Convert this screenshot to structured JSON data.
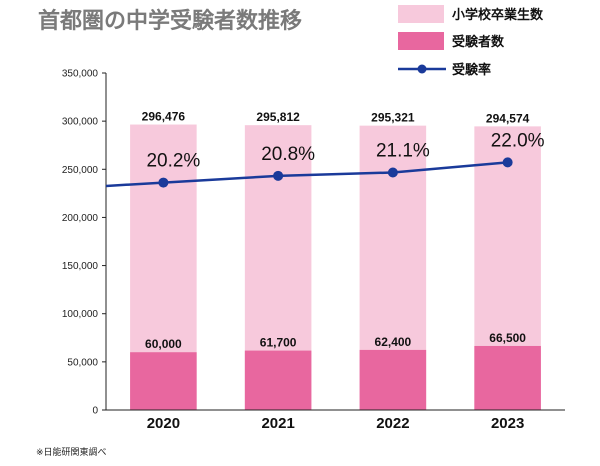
{
  "chart_data": {
    "type": "bar",
    "title": "首都圏の中学受験者数推移",
    "categories": [
      "2020",
      "2021",
      "2022",
      "2023"
    ],
    "ylim": [
      0,
      350000
    ],
    "yticks": [
      "0",
      "50,000",
      "100,000",
      "150,000",
      "200,000",
      "250,000",
      "300,000",
      "350,000"
    ],
    "series": [
      {
        "name": "小学校卒業生数",
        "kind": "bar",
        "color": "#f7c9dc",
        "values": [
          296476,
          295812,
          295321,
          294574
        ],
        "labels": [
          "296,476",
          "295,812",
          "295,321",
          "294,574"
        ]
      },
      {
        "name": "受験者数",
        "kind": "bar",
        "color": "#e8679f",
        "values": [
          60000,
          61700,
          62400,
          66500
        ],
        "labels": [
          "60,000",
          "61,700",
          "62,400",
          "66,500"
        ]
      },
      {
        "name": "受験率",
        "kind": "line",
        "color": "#1a3a9a",
        "values": [
          20.2,
          20.8,
          21.1,
          22.0
        ],
        "labels": [
          "20.2%",
          "20.8%",
          "21.1%",
          "22.0%"
        ]
      }
    ],
    "legend_position": "top-right",
    "grid": false
  },
  "note": "※日能研関東調べ"
}
